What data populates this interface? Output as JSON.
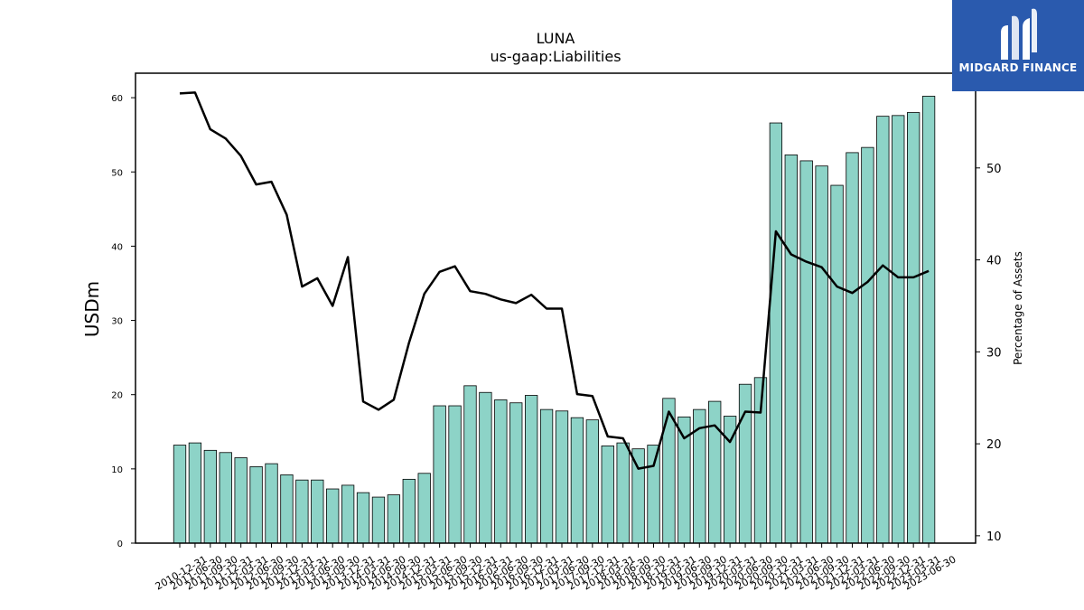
{
  "brand": {
    "name": "MIDGARD FINANCE",
    "bg_color": "#2a5aae"
  },
  "chart_data": {
    "type": "bar",
    "title": "LUNA",
    "subtitle": "us-gaap:Liabilities",
    "ylabel": "USDm",
    "y2label": "Percentage of Assets",
    "ylim": [
      0,
      63.3
    ],
    "y2lim": [
      9.2,
      60.3
    ],
    "yticks": [
      0,
      10,
      20,
      30,
      40,
      50,
      60
    ],
    "y2ticks": [
      10,
      20,
      30,
      40,
      50
    ],
    "bar_color": "#8dd3c7",
    "line_color": "#000000",
    "categories": [
      "2010-12-31",
      "2011-06-30",
      "2011-09-30",
      "2011-12-31",
      "2012-03-31",
      "2012-06-30",
      "2012-09-30",
      "2012-12-31",
      "2013-03-31",
      "2013-06-30",
      "2013-09-30",
      "2013-12-31",
      "2014-03-31",
      "2014-06-30",
      "2014-09-30",
      "2014-12-31",
      "2015-03-31",
      "2015-06-30",
      "2015-09-30",
      "2015-12-31",
      "2016-03-31",
      "2016-06-30",
      "2016-09-30",
      "2016-12-31",
      "2017-03-31",
      "2017-06-30",
      "2017-09-30",
      "2017-12-31",
      "2018-03-31",
      "2018-06-30",
      "2018-09-30",
      "2018-12-31",
      "2019-03-31",
      "2019-06-30",
      "2019-09-30",
      "2019-12-31",
      "2020-03-31",
      "2020-06-30",
      "2020-09-30",
      "2020-12-31",
      "2021-03-31",
      "2021-06-30",
      "2021-09-30",
      "2021-12-31",
      "2022-03-31",
      "2022-06-30",
      "2022-09-30",
      "2022-12-31",
      "2023-03-31",
      "2023-06-30"
    ],
    "series": [
      {
        "kind": "bar",
        "axis": "left",
        "values": [
          13.2,
          13.5,
          12.5,
          12.2,
          11.5,
          10.3,
          10.7,
          9.2,
          8.5,
          8.5,
          7.3,
          7.8,
          6.8,
          6.2,
          6.5,
          8.6,
          9.4,
          18.5,
          18.5,
          21.2,
          20.3,
          19.3,
          18.9,
          19.9,
          18.0,
          17.8,
          16.9,
          16.6,
          13.1,
          13.5,
          12.7,
          13.2,
          19.5,
          17.0,
          18.0,
          19.1,
          17.1,
          21.4,
          22.3,
          56.6,
          52.3,
          51.5,
          50.8,
          48.2,
          52.6,
          53.3,
          57.5,
          57.6,
          58.0,
          60.2
        ]
      },
      {
        "kind": "line",
        "axis": "right",
        "values": [
          58.1,
          58.2,
          54.2,
          53.2,
          51.3,
          48.2,
          48.5,
          44.9,
          37.1,
          38.0,
          35.0,
          40.3,
          24.6,
          23.7,
          24.8,
          31.0,
          36.3,
          38.7,
          39.3,
          36.6,
          36.3,
          35.7,
          35.3,
          36.2,
          34.7,
          34.7,
          25.4,
          25.2,
          20.8,
          20.6,
          17.3,
          17.6,
          23.5,
          20.6,
          21.7,
          22.0,
          20.2,
          23.5,
          23.4,
          43.1,
          40.6,
          39.8,
          39.2,
          37.1,
          36.4,
          37.6,
          39.4,
          38.1,
          38.1,
          38.8
        ]
      }
    ]
  }
}
